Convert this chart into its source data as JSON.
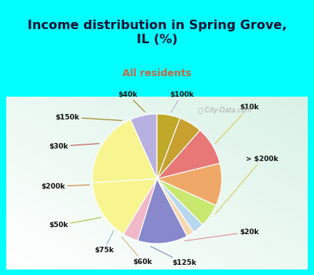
{
  "title": "Income distribution in Spring Grove,\nIL (%)",
  "subtitle": "All residents",
  "bg_cyan": "#00FFFF",
  "bg_chart_color": "#e8f4ee",
  "labels": [
    "$100k",
    "$10k",
    "> $200k",
    "$20k",
    "$125k",
    "$60k",
    "$75k",
    "$50k",
    "$200k",
    "$30k",
    "$150k",
    "$40k"
  ],
  "sizes": [
    7,
    20,
    16,
    4,
    13,
    2,
    3,
    6,
    11,
    10,
    6,
    6
  ],
  "colors": [
    "#b8b0e0",
    "#f8f590",
    "#f8f590",
    "#f0b8c8",
    "#8888cc",
    "#f5d8b0",
    "#b8d8f0",
    "#c8e870",
    "#f0a868",
    "#e87878",
    "#c8a030",
    "#c0a828"
  ],
  "label_colors": [
    "#b8b0e0",
    "#d4d060",
    "#d4d060",
    "#e090a0",
    "#8888cc",
    "#d0b888",
    "#90b8d8",
    "#a0c840",
    "#d08040",
    "#c05858",
    "#a08020",
    "#a08820"
  ]
}
